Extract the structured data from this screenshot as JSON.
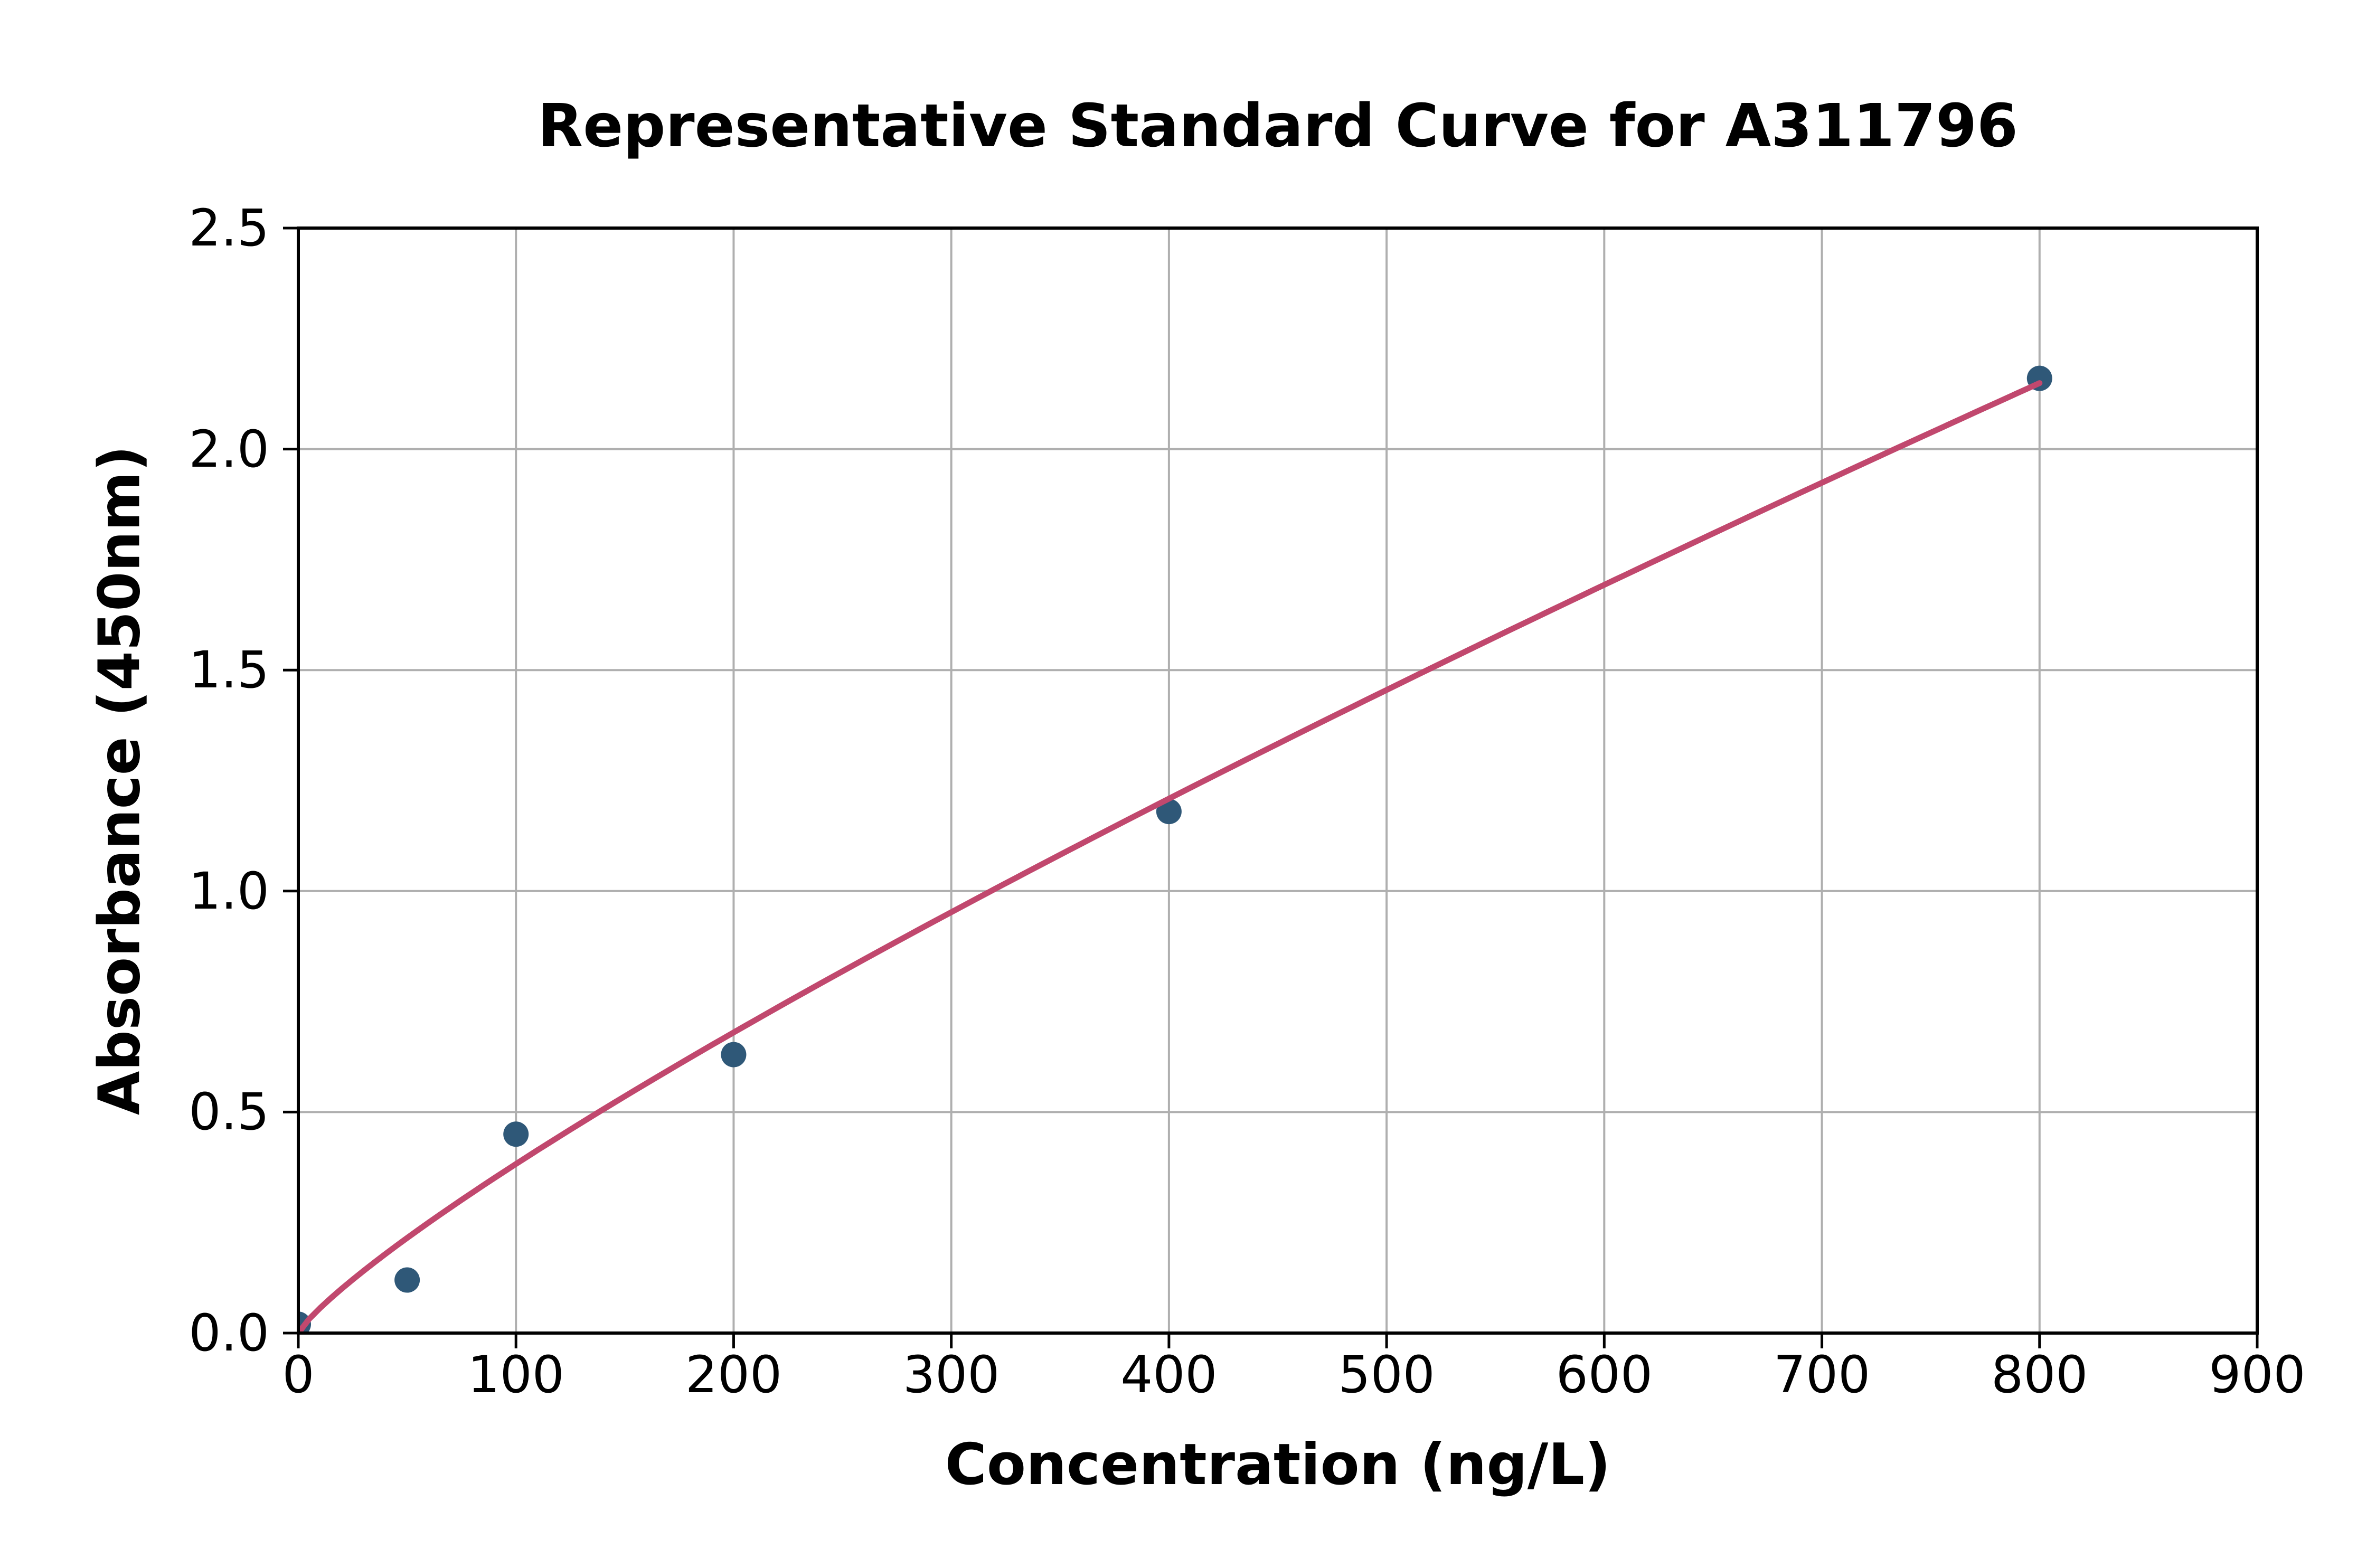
{
  "chart_data": {
    "type": "scatter",
    "title": "Representative Standard Curve for A311796",
    "xlabel": "Concentration (ng/L)",
    "ylabel": "Absorbance (450nm)",
    "xlim": [
      0,
      900
    ],
    "ylim": [
      0,
      2.5
    ],
    "x_ticks": [
      "0",
      "100",
      "200",
      "300",
      "400",
      "500",
      "600",
      "700",
      "800",
      "900"
    ],
    "x_tick_values": [
      0,
      100,
      200,
      300,
      400,
      500,
      600,
      700,
      800,
      900
    ],
    "y_ticks": [
      "0.0",
      "0.5",
      "1.0",
      "1.5",
      "2.0",
      "2.5"
    ],
    "y_tick_values": [
      0,
      0.5,
      1.0,
      1.5,
      2.0,
      2.5
    ],
    "grid": true,
    "legend": null,
    "points": [
      {
        "x": 0,
        "y": 0.02
      },
      {
        "x": 50,
        "y": 0.12
      },
      {
        "x": 100,
        "y": 0.45
      },
      {
        "x": 200,
        "y": 0.63
      },
      {
        "x": 400,
        "y": 1.18
      },
      {
        "x": 800,
        "y": 2.16
      }
    ],
    "fit_curve": {
      "model": "power",
      "a": 0.00837,
      "b": 0.83,
      "x_start": 0,
      "x_end": 800
    },
    "colors": {
      "marker": "#2F5878",
      "line": "#C1486E",
      "grid": "#AFAFAF",
      "axis": "#000000",
      "background": "#FFFFFF"
    }
  }
}
